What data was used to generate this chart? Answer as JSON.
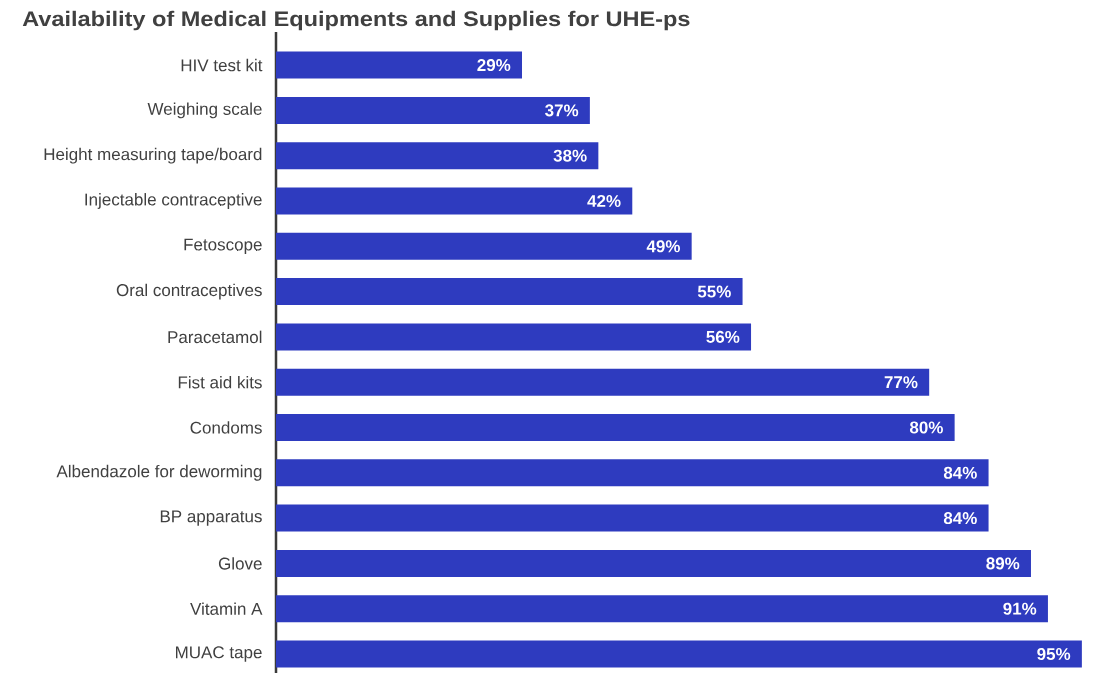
{
  "chart_data": {
    "type": "bar",
    "orientation": "horizontal",
    "title": "Availability of Medical Equipments and Supplies for UHE-ps",
    "categories": [
      "HIV test kit",
      "Weighing scale",
      "Height measuring tape/board",
      "Injectable contraceptive",
      "Fetoscope",
      "Oral contraceptives",
      "Paracetamol",
      "Fist aid kits",
      "Condoms",
      "Albendazole for deworming",
      "BP apparatus",
      "Glove",
      "Vitamin A",
      "MUAC tape"
    ],
    "values": [
      29,
      37,
      38,
      42,
      49,
      55,
      56,
      77,
      80,
      84,
      84,
      89,
      91,
      95
    ],
    "value_labels": [
      "29%",
      "37%",
      "38%",
      "42%",
      "49%",
      "55%",
      "56%",
      "77%",
      "80%",
      "84%",
      "84%",
      "89%",
      "91%",
      "95%"
    ],
    "color": "#2e3bbf"
  }
}
